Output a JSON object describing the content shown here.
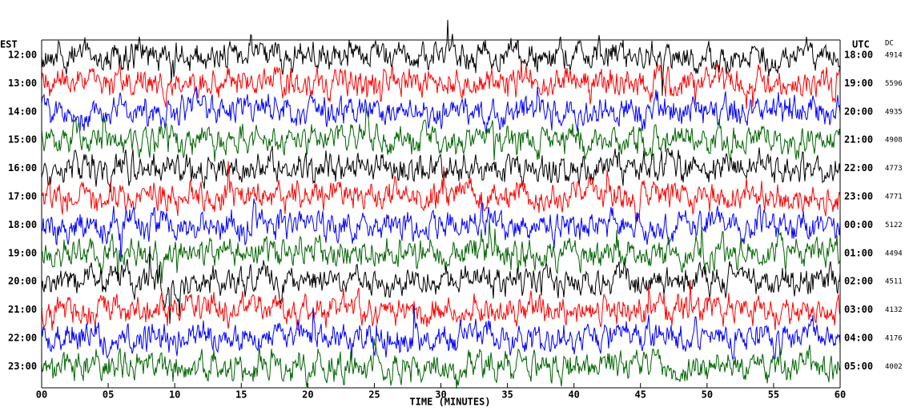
{
  "chart_data": {
    "type": "helicorder",
    "left_axis_label": "EST",
    "right_axis_label": "UTC",
    "dc_label": "DC",
    "xlabel": "TIME (MINUTES)",
    "xlim": [
      0,
      60
    ],
    "xticks": [
      {
        "value": 0,
        "label": "00"
      },
      {
        "value": 5,
        "label": "05"
      },
      10,
      15,
      20,
      25,
      30,
      35,
      40,
      45,
      50,
      55,
      60
    ],
    "rows": [
      {
        "est": "12:00",
        "utc": "18:00",
        "dc": 4914,
        "color": "#000000"
      },
      {
        "est": "13:00",
        "utc": "19:00",
        "dc": 5596,
        "color": "#ff0000"
      },
      {
        "est": "14:00",
        "utc": "20:00",
        "dc": 4935,
        "color": "#0000ff"
      },
      {
        "est": "15:00",
        "utc": "21:00",
        "dc": 4908,
        "color": "#006400"
      },
      {
        "est": "16:00",
        "utc": "22:00",
        "dc": 4773,
        "color": "#000000"
      },
      {
        "est": "17:00",
        "utc": "23:00",
        "dc": 4771,
        "color": "#ff0000"
      },
      {
        "est": "18:00",
        "utc": "00:00",
        "dc": 5122,
        "color": "#0000ff"
      },
      {
        "est": "19:00",
        "utc": "01:00",
        "dc": 4494,
        "color": "#006400"
      },
      {
        "est": "20:00",
        "utc": "02:00",
        "dc": 4511,
        "color": "#000000"
      },
      {
        "est": "21:00",
        "utc": "03:00",
        "dc": 4132,
        "color": "#ff0000"
      },
      {
        "est": "22:00",
        "utc": "04:00",
        "dc": 4176,
        "color": "#0000ff"
      },
      {
        "est": "23:00",
        "utc": "05:00",
        "dc": 4002,
        "color": "#006400"
      }
    ]
  }
}
